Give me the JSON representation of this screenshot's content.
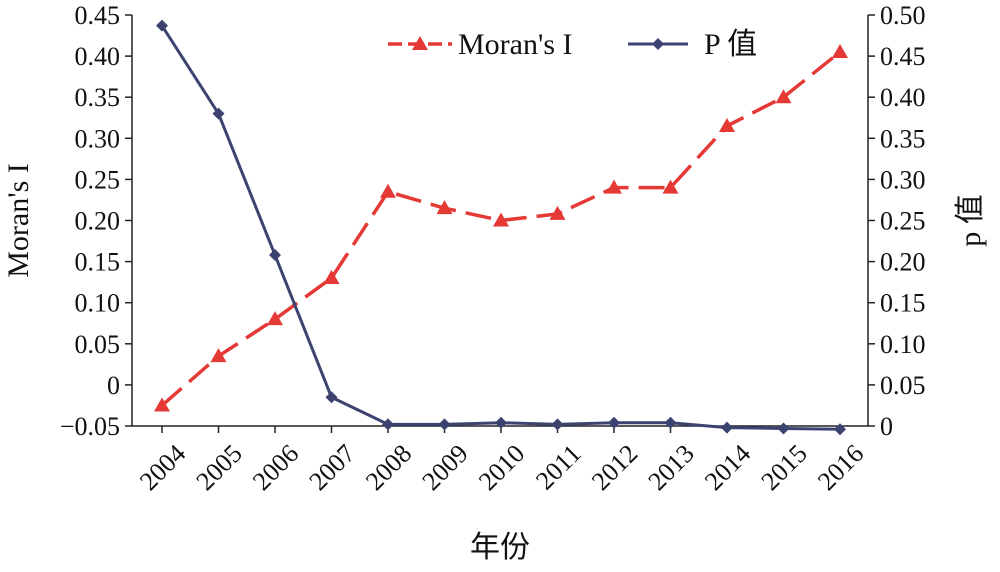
{
  "chart_data": {
    "type": "line",
    "categories": [
      "2004",
      "2005",
      "2006",
      "2007",
      "2008",
      "2009",
      "2010",
      "2011",
      "2012",
      "2013",
      "2014",
      "2015",
      "2016"
    ],
    "xlabel": "年份",
    "ylabel_left": "Moran's I",
    "ylabel_right": "p 值",
    "ylim_left": [
      -0.05,
      0.45
    ],
    "ylim_right": [
      0,
      0.5
    ],
    "yticks_left": [
      "−0.05",
      "0",
      "0.05",
      "0.10",
      "0.15",
      "0.20",
      "0.25",
      "0.30",
      "0.35",
      "0.40",
      "0.45"
    ],
    "yticks_right": [
      "0",
      "0.05",
      "0.10",
      "0.15",
      "0.20",
      "0.25",
      "0.30",
      "0.35",
      "0.40",
      "0.45",
      "0.50"
    ],
    "legend_position": "top-right",
    "grid": false,
    "series": [
      {
        "name": "Moran's I",
        "axis": "left",
        "color": "#e53935",
        "line_style": "dashed",
        "marker": "triangle",
        "values": [
          -0.025,
          0.035,
          0.08,
          0.13,
          0.235,
          0.215,
          0.2,
          0.208,
          0.24,
          0.24,
          0.315,
          0.35,
          0.405
        ]
      },
      {
        "name": "P 值",
        "axis": "right",
        "color": "#3d4370",
        "line_style": "solid",
        "marker": "diamond",
        "values": [
          0.487,
          0.38,
          0.208,
          0.035,
          0.002,
          0.002,
          0.004,
          0.002,
          0.004,
          0.004,
          -0.002,
          -0.003,
          -0.004
        ]
      }
    ]
  }
}
